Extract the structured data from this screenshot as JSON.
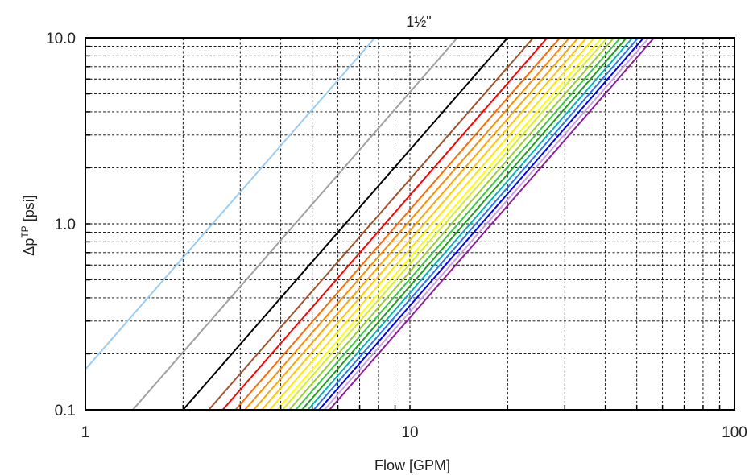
{
  "chart_data": {
    "type": "line",
    "title": "1½\"",
    "xlabel": "Flow [GPM]",
    "ylabel": "Δp",
    "ylabel_superscript": "TP",
    "ylabel_unit": " [psi]",
    "x_scale": "log",
    "y_scale": "log",
    "xlim": [
      1,
      100
    ],
    "ylim": [
      0.1,
      10
    ],
    "x_ticks": [
      "1",
      "10",
      "100"
    ],
    "y_ticks": [
      "0.1",
      "1.0",
      "10.0"
    ],
    "grid": "on",
    "legend": "none",
    "slope": 2,
    "series": [
      {
        "color": "#99ccf2",
        "points": [
          [
            1,
            0.165
          ],
          [
            7.8,
            10
          ]
        ]
      },
      {
        "color": "#a0a0a0",
        "points": [
          [
            1.4,
            0.1
          ],
          [
            14,
            10
          ]
        ]
      },
      {
        "color": "#000000",
        "points": [
          [
            2.0,
            0.1
          ],
          [
            20,
            10
          ]
        ]
      },
      {
        "color": "#a0522d",
        "points": [
          [
            2.4,
            0.1
          ],
          [
            24,
            10
          ]
        ]
      },
      {
        "color": "#ff0000",
        "points": [
          [
            2.65,
            0.1
          ],
          [
            26.5,
            10
          ]
        ]
      },
      {
        "color": "#ff6a00",
        "points": [
          [
            2.9,
            0.1
          ],
          [
            29,
            10
          ]
        ]
      },
      {
        "color": "#ff8c00",
        "points": [
          [
            3.1,
            0.1
          ],
          [
            31,
            10
          ]
        ]
      },
      {
        "color": "#ffa500",
        "points": [
          [
            3.3,
            0.1
          ],
          [
            33,
            10
          ]
        ]
      },
      {
        "color": "#ffc800",
        "points": [
          [
            3.5,
            0.1
          ],
          [
            35,
            10
          ]
        ]
      },
      {
        "color": "#ffe600",
        "points": [
          [
            3.7,
            0.1
          ],
          [
            37,
            10
          ]
        ]
      },
      {
        "color": "#ffff00",
        "points": [
          [
            3.9,
            0.1
          ],
          [
            39,
            10
          ]
        ]
      },
      {
        "color": "#d4ee22",
        "points": [
          [
            4.05,
            0.1
          ],
          [
            40.5,
            10
          ]
        ]
      },
      {
        "color": "#9acd32",
        "points": [
          [
            4.25,
            0.1
          ],
          [
            42.5,
            10
          ]
        ]
      },
      {
        "color": "#3cc83c",
        "points": [
          [
            4.45,
            0.1
          ],
          [
            44.5,
            10
          ]
        ]
      },
      {
        "color": "#1ca01c",
        "points": [
          [
            4.65,
            0.1
          ],
          [
            46.5,
            10
          ]
        ]
      },
      {
        "color": "#00b4b4",
        "points": [
          [
            4.85,
            0.1
          ],
          [
            48.5,
            10
          ]
        ]
      },
      {
        "color": "#2878f0",
        "points": [
          [
            5.05,
            0.1
          ],
          [
            50.5,
            10
          ]
        ]
      },
      {
        "color": "#0000ff",
        "points": [
          [
            5.25,
            0.1
          ],
          [
            52.5,
            10
          ]
        ]
      },
      {
        "color": "#c8a0e6",
        "points": [
          [
            5.45,
            0.1
          ],
          [
            54.5,
            10
          ]
        ]
      },
      {
        "color": "#8b1e9b",
        "points": [
          [
            5.65,
            0.1
          ],
          [
            56.5,
            10
          ]
        ]
      }
    ]
  }
}
